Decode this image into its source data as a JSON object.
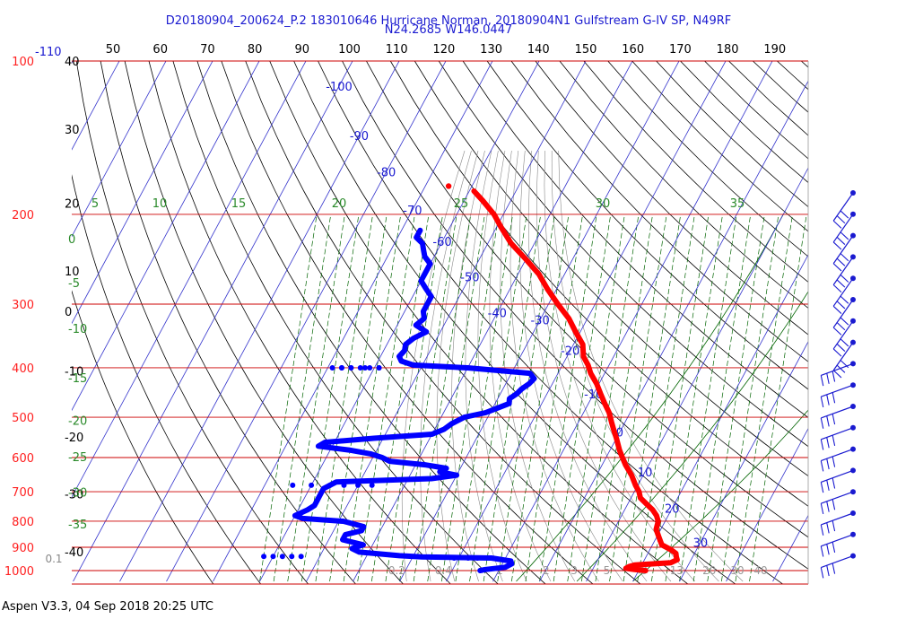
{
  "header": {
    "title_line1": "D20180904_200624_P.2 183010646 Hurricane Norman, 20180904N1 Gulfstream G-IV SP, N49RF",
    "title_line2": "N24.2685 W146.0447"
  },
  "footer": {
    "text": "Aspen V3.3, 04 Sep 2018  20:25 UTC"
  },
  "colors": {
    "temperature": "#ff0000",
    "dewpoint": "#0000ff",
    "isobar": "#cc0000",
    "mixing_ratio": "#006400",
    "isotherm": "#1a1ad0",
    "adiabat": "#000000"
  },
  "chart_data": {
    "type": "skew-t log-p sounding",
    "yscale": "log",
    "pressure_levels_hPa": [
      100,
      200,
      300,
      400,
      500,
      600,
      700,
      800,
      900,
      1000
    ],
    "pressure_labels": [
      "100",
      "200",
      "300",
      "400",
      "500",
      "600",
      "700",
      "800",
      "900",
      "1000"
    ],
    "pressure_top_extra_label": "-110",
    "top_axis_labels": [
      "50",
      "60",
      "70",
      "80",
      "90",
      "100",
      "110",
      "120",
      "130",
      "140",
      "150",
      "160",
      "170",
      "180",
      "190"
    ],
    "isotherm_labels": [
      {
        "label": "-100",
        "t": -100,
        "p": 112
      },
      {
        "label": "-90",
        "t": -90,
        "p": 140
      },
      {
        "label": "-80",
        "t": -80,
        "p": 165
      },
      {
        "label": "-70",
        "t": -70,
        "p": 196
      },
      {
        "label": "-60",
        "t": -60,
        "p": 226
      },
      {
        "label": "-50",
        "t": -50,
        "p": 265
      },
      {
        "label": "-40",
        "t": -40,
        "p": 312
      },
      {
        "label": "-30",
        "t": -30,
        "p": 322
      },
      {
        "label": "-20",
        "t": -20,
        "p": 370
      },
      {
        "label": "-10",
        "t": -10,
        "p": 450
      },
      {
        "label": "0",
        "t": 0,
        "p": 535
      },
      {
        "label": "10",
        "t": 10,
        "p": 640
      },
      {
        "label": "20",
        "t": 20,
        "p": 755
      },
      {
        "label": "30",
        "t": 30,
        "p": 880
      }
    ],
    "bottom_row_labels": [
      {
        "label": "0.1",
        "t": -30,
        "grey": true
      },
      {
        "label": "0.2",
        "t": -28
      },
      {
        "label": "0.4",
        "t": -18
      },
      {
        "label": "1",
        "t": -6
      },
      {
        "label": "2",
        "t": 4
      },
      {
        "label": "3",
        "t": 10
      },
      {
        "label": "5",
        "t": 17
      },
      {
        "label": "8",
        "t": 25
      },
      {
        "label": "13",
        "t": 32
      },
      {
        "label": "20",
        "t": 39
      },
      {
        "label": "30",
        "t": 45
      },
      {
        "label": "40",
        "t": 50
      }
    ],
    "left_column_labels": [
      {
        "label": "40",
        "p": 100
      },
      {
        "label": "30",
        "p": 136
      },
      {
        "label": "20",
        "p": 190
      },
      {
        "label": "10",
        "p": 258
      },
      {
        "label": "0",
        "p": 310
      },
      {
        "label": "-10",
        "p": 406
      },
      {
        "label": "-20",
        "p": 547
      },
      {
        "label": "-30",
        "p": 707
      },
      {
        "label": "-40",
        "p": 918
      }
    ],
    "mixing_ratio_top_labels": [
      {
        "label": "5",
        "x": 106
      },
      {
        "label": "10",
        "x": 178
      },
      {
        "label": "15",
        "x": 266
      },
      {
        "label": "20",
        "x": 378
      },
      {
        "label": "25",
        "x": 514
      },
      {
        "label": "30",
        "x": 672
      },
      {
        "label": "35",
        "x": 822
      }
    ],
    "mixing_ratio_left_labels": [
      {
        "label": "0",
        "p": 223
      },
      {
        "label": "-5",
        "p": 272
      },
      {
        "label": "-10",
        "p": 335
      },
      {
        "label": "-15",
        "p": 418
      },
      {
        "label": "-20",
        "p": 507
      },
      {
        "label": "-25",
        "p": 598
      },
      {
        "label": "-30",
        "p": 702
      },
      {
        "label": "-35",
        "p": 810
      }
    ],
    "temperature_profile": [
      [
        1000,
        21.5
      ],
      [
        995,
        19
      ],
      [
        990,
        17
      ],
      [
        982,
        17.5
      ],
      [
        975,
        18.5
      ],
      [
        965,
        26
      ],
      [
        952,
        27
      ],
      [
        940,
        26.5
      ],
      [
        925,
        26
      ],
      [
        910,
        24.5
      ],
      [
        890,
        22
      ],
      [
        860,
        20.5
      ],
      [
        830,
        19
      ],
      [
        800,
        18.5
      ],
      [
        780,
        17.5
      ],
      [
        760,
        16
      ],
      [
        740,
        14
      ],
      [
        720,
        12
      ],
      [
        700,
        11
      ],
      [
        680,
        9.5
      ],
      [
        650,
        7.5
      ],
      [
        620,
        5
      ],
      [
        600,
        3.5
      ],
      [
        580,
        2
      ],
      [
        550,
        0
      ],
      [
        530,
        -1.5
      ],
      [
        510,
        -3
      ],
      [
        490,
        -4.5
      ],
      [
        470,
        -6.5
      ],
      [
        450,
        -8.5
      ],
      [
        430,
        -10.5
      ],
      [
        410,
        -13
      ],
      [
        395,
        -14.5
      ],
      [
        380,
        -16.5
      ],
      [
        360,
        -18
      ],
      [
        340,
        -21
      ],
      [
        320,
        -24
      ],
      [
        300,
        -28
      ],
      [
        280,
        -32
      ],
      [
        262,
        -35.5
      ],
      [
        245,
        -40
      ],
      [
        228,
        -45
      ],
      [
        212,
        -49
      ],
      [
        200,
        -52
      ],
      [
        188,
        -56
      ],
      [
        180,
        -59
      ]
    ],
    "temperature_top_point": [
      176,
      -65
    ],
    "dewpoint_profile": [
      [
        1000,
        -14
      ],
      [
        995,
        -13
      ],
      [
        985,
        -9
      ],
      [
        970,
        -8
      ],
      [
        958,
        -8.5
      ],
      [
        945,
        -13
      ],
      [
        940,
        -28
      ],
      [
        935,
        -33
      ],
      [
        920,
        -42
      ],
      [
        905,
        -44
      ],
      [
        890,
        -42
      ],
      [
        870,
        -47
      ],
      [
        850,
        -47
      ],
      [
        835,
        -44
      ],
      [
        820,
        -44
      ],
      [
        800,
        -49
      ],
      [
        790,
        -58
      ],
      [
        780,
        -60
      ],
      [
        760,
        -58
      ],
      [
        745,
        -57
      ],
      [
        730,
        -57
      ],
      [
        715,
        -57
      ],
      [
        700,
        -57
      ],
      [
        690,
        -57
      ],
      [
        670,
        -55
      ],
      [
        660,
        -35
      ],
      [
        650,
        -30
      ],
      [
        640,
        -34
      ],
      [
        630,
        -33
      ],
      [
        620,
        -38
      ],
      [
        610,
        -46
      ],
      [
        600,
        -48
      ],
      [
        590,
        -51
      ],
      [
        580,
        -56
      ],
      [
        570,
        -63
      ],
      [
        560,
        -62
      ],
      [
        550,
        -52
      ],
      [
        540,
        -40
      ],
      [
        528,
        -38
      ],
      [
        515,
        -37
      ],
      [
        500,
        -35
      ],
      [
        490,
        -31
      ],
      [
        480,
        -29
      ],
      [
        470,
        -27
      ],
      [
        460,
        -27.5
      ],
      [
        450,
        -26.5
      ],
      [
        440,
        -26
      ],
      [
        430,
        -25
      ],
      [
        420,
        -24.5
      ],
      [
        410,
        -26
      ],
      [
        400,
        -40
      ],
      [
        395,
        -52
      ],
      [
        388,
        -55
      ],
      [
        380,
        -56
      ],
      [
        370,
        -55.5
      ],
      [
        360,
        -56
      ],
      [
        350,
        -55
      ],
      [
        340,
        -53
      ],
      [
        330,
        -56
      ],
      [
        320,
        -55
      ],
      [
        310,
        -56
      ],
      [
        300,
        -56
      ],
      [
        290,
        -56
      ],
      [
        280,
        -58
      ],
      [
        270,
        -60
      ],
      [
        262,
        -60
      ],
      [
        250,
        -60
      ],
      [
        242,
        -62
      ],
      [
        235,
        -63
      ],
      [
        228,
        -64
      ],
      [
        222,
        -66
      ],
      [
        215,
        -66
      ]
    ],
    "dewpoint_sparse_points": [
      [
        400,
        -59
      ],
      [
        400,
        -62
      ],
      [
        400,
        -65
      ],
      [
        400,
        -67
      ],
      [
        400,
        -69
      ],
      [
        400,
        -67
      ],
      [
        400,
        -65
      ],
      [
        400,
        -63
      ],
      [
        400,
        -61
      ],
      [
        400,
        -59
      ],
      [
        680,
        -64
      ],
      [
        680,
        -60
      ],
      [
        680,
        -56
      ],
      [
        680,
        -53
      ],
      [
        680,
        -50
      ],
      [
        680,
        -47
      ],
      [
        938,
        -62
      ],
      [
        938,
        -60
      ],
      [
        938,
        -58
      ],
      [
        938,
        -56
      ],
      [
        938,
        -54
      ],
      [
        945,
        -21
      ],
      [
        945,
        -18
      ],
      [
        945,
        -16
      ]
    ],
    "wind_barb_levels_hPa": [
      150,
      175,
      200,
      228,
      258,
      295,
      345,
      400,
      460,
      520,
      580,
      640,
      700,
      760,
      820,
      880,
      940,
      1000
    ]
  }
}
